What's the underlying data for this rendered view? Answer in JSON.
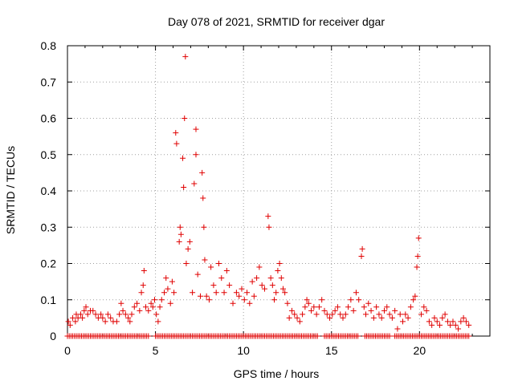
{
  "chart_data": {
    "type": "scatter",
    "title": "Day 078 of 2021, SRMTID for receiver dgar",
    "xlabel": "GPS time / hours",
    "ylabel": "SRMTID / TECUs",
    "xlim": [
      0,
      24
    ],
    "ylim": [
      0,
      0.8
    ],
    "xticks": [
      0,
      5,
      10,
      15,
      20
    ],
    "yticks": [
      0,
      0.1,
      0.2,
      0.3,
      0.4,
      0.5,
      0.6,
      0.7,
      0.8
    ],
    "xtick_labels": [
      "0",
      "5",
      "10",
      "15",
      "20"
    ],
    "ytick_labels": [
      "0",
      "0.1",
      "0.2",
      "0.3",
      "0.4",
      "0.5",
      "0.6",
      "0.7",
      "0.8"
    ],
    "grid": true,
    "marker": "plus",
    "color": "#e00000",
    "series": [
      {
        "name": "SRMTID",
        "points": [
          [
            0.05,
            0.04
          ],
          [
            0.15,
            0.03
          ],
          [
            0.3,
            0.05
          ],
          [
            0.45,
            0.04
          ],
          [
            0.5,
            0.06
          ],
          [
            0.6,
            0.05
          ],
          [
            0.75,
            0.06
          ],
          [
            0.85,
            0.05
          ],
          [
            0.95,
            0.07
          ],
          [
            1.05,
            0.08
          ],
          [
            1.15,
            0.06
          ],
          [
            1.3,
            0.07
          ],
          [
            1.45,
            0.07
          ],
          [
            1.6,
            0.06
          ],
          [
            1.75,
            0.05
          ],
          [
            1.9,
            0.06
          ],
          [
            2.0,
            0.05
          ],
          [
            2.15,
            0.04
          ],
          [
            2.3,
            0.06
          ],
          [
            2.45,
            0.05
          ],
          [
            2.6,
            0.04
          ],
          [
            2.8,
            0.04
          ],
          [
            2.95,
            0.06
          ],
          [
            3.05,
            0.09
          ],
          [
            3.15,
            0.07
          ],
          [
            3.3,
            0.06
          ],
          [
            3.45,
            0.05
          ],
          [
            3.55,
            0.04
          ],
          [
            3.65,
            0.06
          ],
          [
            3.8,
            0.08
          ],
          [
            3.95,
            0.09
          ],
          [
            4.1,
            0.07
          ],
          [
            4.2,
            0.12
          ],
          [
            4.3,
            0.14
          ],
          [
            4.35,
            0.18
          ],
          [
            4.45,
            0.08
          ],
          [
            4.6,
            0.07
          ],
          [
            4.75,
            0.09
          ],
          [
            4.85,
            0.08
          ],
          [
            4.95,
            0.1
          ],
          [
            5.05,
            0.06
          ],
          [
            5.15,
            0.04
          ],
          [
            5.25,
            0.08
          ],
          [
            5.35,
            0.1
          ],
          [
            5.5,
            0.12
          ],
          [
            5.6,
            0.16
          ],
          [
            5.7,
            0.13
          ],
          [
            5.85,
            0.09
          ],
          [
            5.95,
            0.15
          ],
          [
            6.05,
            0.12
          ],
          [
            6.15,
            0.56
          ],
          [
            6.2,
            0.53
          ],
          [
            6.35,
            0.26
          ],
          [
            6.4,
            0.3
          ],
          [
            6.45,
            0.28
          ],
          [
            6.55,
            0.49
          ],
          [
            6.6,
            0.41
          ],
          [
            6.65,
            0.6
          ],
          [
            6.7,
            0.77
          ],
          [
            6.75,
            0.2
          ],
          [
            6.85,
            0.24
          ],
          [
            6.95,
            0.26
          ],
          [
            7.1,
            0.12
          ],
          [
            7.2,
            0.42
          ],
          [
            7.3,
            0.57
          ],
          [
            7.3,
            0.5
          ],
          [
            7.4,
            0.17
          ],
          [
            7.55,
            0.11
          ],
          [
            7.65,
            0.45
          ],
          [
            7.7,
            0.38
          ],
          [
            7.75,
            0.3
          ],
          [
            7.8,
            0.21
          ],
          [
            7.9,
            0.11
          ],
          [
            8.05,
            0.1
          ],
          [
            8.15,
            0.19
          ],
          [
            8.3,
            0.14
          ],
          [
            8.45,
            0.12
          ],
          [
            8.6,
            0.2
          ],
          [
            8.75,
            0.16
          ],
          [
            8.9,
            0.12
          ],
          [
            9.05,
            0.18
          ],
          [
            9.2,
            0.14
          ],
          [
            9.4,
            0.09
          ],
          [
            9.6,
            0.12
          ],
          [
            9.75,
            0.11
          ],
          [
            9.9,
            0.13
          ],
          [
            10.05,
            0.1
          ],
          [
            10.2,
            0.12
          ],
          [
            10.35,
            0.09
          ],
          [
            10.5,
            0.15
          ],
          [
            10.6,
            0.11
          ],
          [
            10.75,
            0.16
          ],
          [
            10.9,
            0.19
          ],
          [
            11.05,
            0.14
          ],
          [
            11.2,
            0.13
          ],
          [
            11.4,
            0.33
          ],
          [
            11.45,
            0.3
          ],
          [
            11.55,
            0.16
          ],
          [
            11.65,
            0.14
          ],
          [
            11.75,
            0.1
          ],
          [
            11.85,
            0.12
          ],
          [
            11.95,
            0.18
          ],
          [
            12.05,
            0.2
          ],
          [
            12.15,
            0.16
          ],
          [
            12.25,
            0.13
          ],
          [
            12.35,
            0.12
          ],
          [
            12.5,
            0.09
          ],
          [
            12.6,
            0.05
          ],
          [
            12.75,
            0.07
          ],
          [
            12.9,
            0.06
          ],
          [
            13.05,
            0.05
          ],
          [
            13.2,
            0.04
          ],
          [
            13.35,
            0.06
          ],
          [
            13.5,
            0.08
          ],
          [
            13.6,
            0.1
          ],
          [
            13.7,
            0.09
          ],
          [
            13.85,
            0.07
          ],
          [
            14.0,
            0.08
          ],
          [
            14.15,
            0.06
          ],
          [
            14.3,
            0.08
          ],
          [
            14.45,
            0.1
          ],
          [
            14.6,
            0.07
          ],
          [
            14.75,
            0.06
          ],
          [
            14.9,
            0.05
          ],
          [
            15.05,
            0.06
          ],
          [
            15.2,
            0.07
          ],
          [
            15.35,
            0.08
          ],
          [
            15.5,
            0.06
          ],
          [
            15.65,
            0.05
          ],
          [
            15.8,
            0.06
          ],
          [
            15.95,
            0.08
          ],
          [
            16.1,
            0.1
          ],
          [
            16.25,
            0.07
          ],
          [
            16.4,
            0.12
          ],
          [
            16.55,
            0.1
          ],
          [
            16.7,
            0.22
          ],
          [
            16.75,
            0.24
          ],
          [
            16.85,
            0.08
          ],
          [
            16.95,
            0.06
          ],
          [
            17.1,
            0.09
          ],
          [
            17.25,
            0.07
          ],
          [
            17.4,
            0.05
          ],
          [
            17.55,
            0.08
          ],
          [
            17.7,
            0.06
          ],
          [
            17.85,
            0.05
          ],
          [
            18.0,
            0.07
          ],
          [
            18.15,
            0.08
          ],
          [
            18.3,
            0.06
          ],
          [
            18.45,
            0.05
          ],
          [
            18.6,
            0.07
          ],
          [
            18.75,
            0.02
          ],
          [
            18.9,
            0.06
          ],
          [
            19.05,
            0.04
          ],
          [
            19.2,
            0.06
          ],
          [
            19.35,
            0.05
          ],
          [
            19.5,
            0.08
          ],
          [
            19.65,
            0.1
          ],
          [
            19.75,
            0.11
          ],
          [
            19.85,
            0.19
          ],
          [
            19.9,
            0.22
          ],
          [
            19.95,
            0.27
          ],
          [
            20.1,
            0.06
          ],
          [
            20.25,
            0.08
          ],
          [
            20.4,
            0.07
          ],
          [
            20.55,
            0.04
          ],
          [
            20.7,
            0.03
          ],
          [
            20.85,
            0.05
          ],
          [
            21.0,
            0.04
          ],
          [
            21.15,
            0.03
          ],
          [
            21.3,
            0.05
          ],
          [
            21.45,
            0.06
          ],
          [
            21.6,
            0.04
          ],
          [
            21.75,
            0.03
          ],
          [
            21.9,
            0.04
          ],
          [
            22.05,
            0.03
          ],
          [
            22.2,
            0.02
          ],
          [
            22.35,
            0.04
          ],
          [
            22.5,
            0.05
          ],
          [
            22.65,
            0.04
          ],
          [
            22.8,
            0.03
          ]
        ]
      }
    ],
    "zero_markers": {
      "y": 0,
      "x_start": 0.0,
      "x_end": 22.8,
      "gaps": [
        [
          4.6,
          4.9
        ],
        [
          14.2,
          14.5
        ],
        [
          16.5,
          16.8
        ],
        [
          18.3,
          18.5
        ]
      ]
    }
  }
}
